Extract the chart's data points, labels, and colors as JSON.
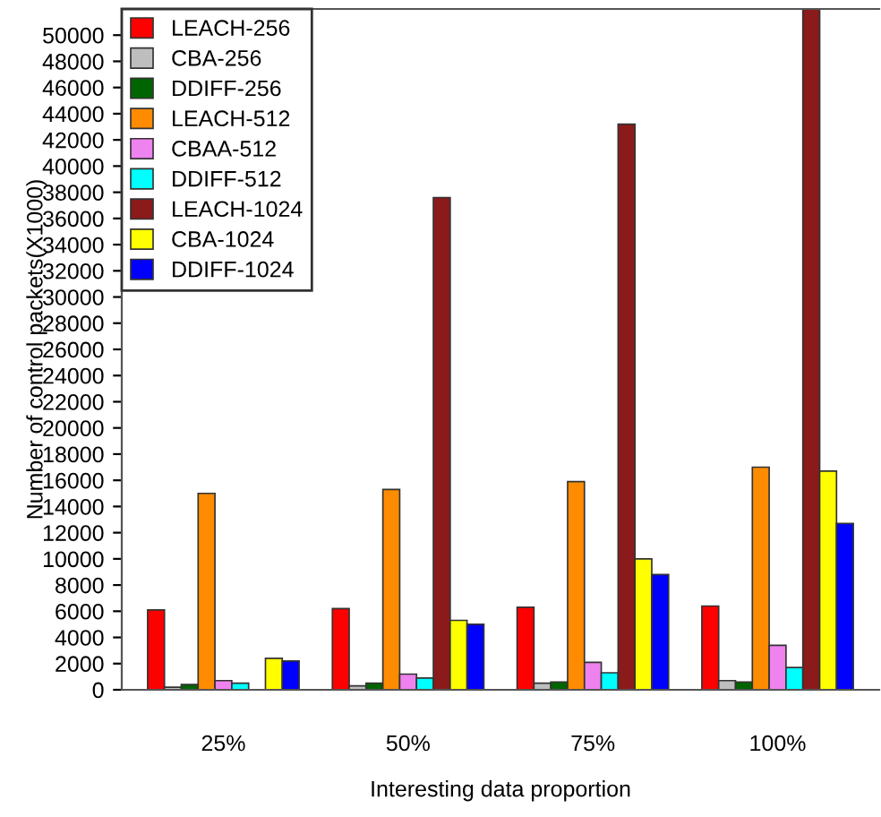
{
  "chart_data": {
    "type": "bar",
    "xlabel": "Interesting data proportion",
    "ylabel": "Number of control packets(X1000)",
    "categories": [
      "25%",
      "50%",
      "75%",
      "100%"
    ],
    "series": [
      {
        "name": "LEACH-256",
        "color": "#ff0000",
        "values": [
          6100,
          6200,
          6300,
          6400
        ]
      },
      {
        "name": "CBA-256",
        "color": "#bebebe",
        "values": [
          200,
          300,
          500,
          700
        ]
      },
      {
        "name": "DDIFF-256",
        "color": "#006400",
        "values": [
          400,
          500,
          600,
          600
        ]
      },
      {
        "name": "LEACH-512",
        "color": "#ff8c00",
        "values": [
          15000,
          15300,
          15900,
          17000
        ]
      },
      {
        "name": "CBAA-512",
        "color": "#ee82ee",
        "values": [
          700,
          1200,
          2100,
          3400
        ]
      },
      {
        "name": "DDIFF-512",
        "color": "#00ffff",
        "values": [
          500,
          900,
          1300,
          1700
        ]
      },
      {
        "name": "LEACH-1024",
        "color": "#8b1a1a",
        "values": [
          null,
          37600,
          43200,
          52000
        ]
      },
      {
        "name": "CBA-1024",
        "color": "#ffff00",
        "values": [
          2400,
          5300,
          10000,
          16700
        ]
      },
      {
        "name": "DDIFF-1024",
        "color": "#0000ff",
        "values": [
          2200,
          5000,
          8800,
          12700
        ]
      }
    ],
    "ylim": [
      0,
      52000
    ],
    "yticks": [
      0,
      2000,
      4000,
      6000,
      8000,
      10000,
      12000,
      14000,
      16000,
      18000,
      20000,
      22000,
      24000,
      26000,
      28000,
      30000,
      32000,
      34000,
      36000,
      38000,
      40000,
      42000,
      44000,
      46000,
      48000,
      50000
    ],
    "grid": false,
    "legend": "top left"
  }
}
